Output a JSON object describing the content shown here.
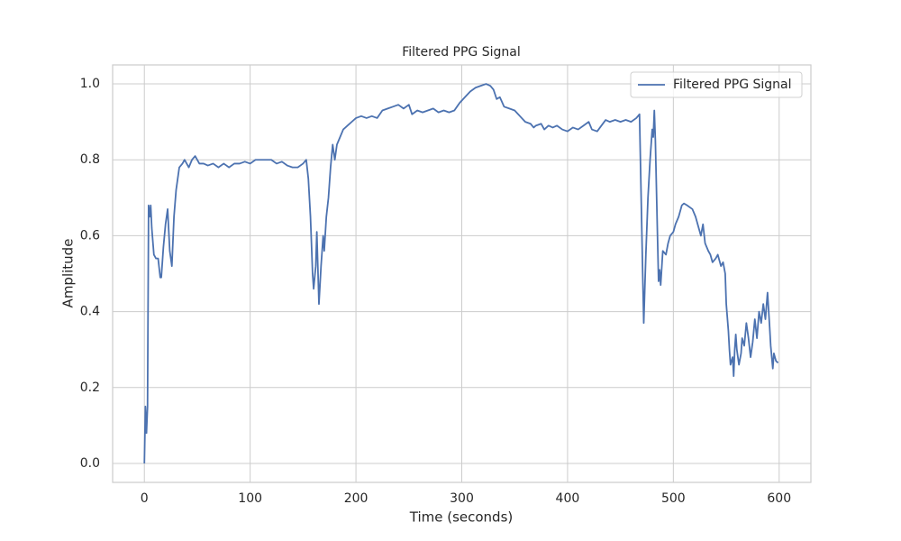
{
  "chart_data": {
    "type": "line",
    "title": "Filtered PPG Signal",
    "xlabel": "Time (seconds)",
    "ylabel": "Amplitude",
    "x": [
      0,
      1,
      2,
      3,
      4,
      5,
      6,
      7,
      9,
      11,
      13,
      15,
      16,
      18,
      20,
      22,
      24,
      26,
      28,
      30,
      33,
      36,
      38,
      40,
      42,
      45,
      48,
      52,
      56,
      60,
      65,
      70,
      75,
      80,
      85,
      90,
      95,
      100,
      105,
      110,
      115,
      120,
      125,
      130,
      135,
      140,
      145,
      150,
      153,
      155,
      157,
      159,
      160,
      162,
      163,
      165,
      167,
      169,
      170,
      172,
      174,
      176,
      178,
      180,
      182,
      185,
      188,
      192,
      196,
      200,
      205,
      210,
      215,
      220,
      225,
      230,
      235,
      240,
      245,
      250,
      253,
      258,
      263,
      268,
      273,
      278,
      283,
      288,
      293,
      298,
      303,
      308,
      313,
      318,
      323,
      327,
      330,
      333,
      336,
      340,
      345,
      350,
      355,
      360,
      365,
      368,
      370,
      375,
      378,
      382,
      386,
      390,
      395,
      400,
      405,
      410,
      415,
      420,
      423,
      428,
      432,
      436,
      440,
      445,
      450,
      455,
      460,
      465,
      468,
      469,
      471,
      472,
      474,
      476,
      478,
      480,
      481,
      482,
      483,
      485,
      486,
      487,
      488,
      490,
      493,
      495,
      497,
      500,
      502,
      505,
      508,
      510,
      513,
      518,
      521,
      524,
      526,
      528,
      530,
      533,
      535,
      537,
      540,
      542,
      545,
      547,
      549,
      550,
      552,
      553,
      554,
      556,
      557,
      558,
      559,
      560,
      562,
      564,
      565,
      567,
      569,
      571,
      573,
      575,
      577,
      579,
      581,
      583,
      585,
      587,
      589,
      591,
      592,
      594,
      595,
      597,
      599
    ],
    "series": [
      {
        "name": "Filtered PPG Signal",
        "color": "#4c72b0",
        "values": [
          0.0,
          0.15,
          0.08,
          0.15,
          0.68,
          0.65,
          0.68,
          0.62,
          0.55,
          0.54,
          0.54,
          0.49,
          0.49,
          0.57,
          0.63,
          0.67,
          0.56,
          0.52,
          0.65,
          0.72,
          0.78,
          0.79,
          0.8,
          0.79,
          0.78,
          0.8,
          0.81,
          0.79,
          0.79,
          0.785,
          0.79,
          0.78,
          0.79,
          0.78,
          0.79,
          0.79,
          0.795,
          0.79,
          0.8,
          0.8,
          0.8,
          0.8,
          0.79,
          0.795,
          0.785,
          0.78,
          0.78,
          0.79,
          0.8,
          0.75,
          0.65,
          0.5,
          0.46,
          0.52,
          0.61,
          0.42,
          0.52,
          0.6,
          0.56,
          0.65,
          0.7,
          0.78,
          0.84,
          0.8,
          0.84,
          0.86,
          0.88,
          0.89,
          0.9,
          0.91,
          0.915,
          0.91,
          0.915,
          0.91,
          0.93,
          0.935,
          0.94,
          0.945,
          0.935,
          0.945,
          0.92,
          0.93,
          0.925,
          0.93,
          0.935,
          0.925,
          0.93,
          0.925,
          0.93,
          0.95,
          0.965,
          0.98,
          0.99,
          0.995,
          1.0,
          0.995,
          0.985,
          0.96,
          0.965,
          0.94,
          0.935,
          0.93,
          0.915,
          0.9,
          0.895,
          0.885,
          0.89,
          0.895,
          0.88,
          0.89,
          0.885,
          0.89,
          0.88,
          0.875,
          0.885,
          0.88,
          0.89,
          0.9,
          0.88,
          0.875,
          0.89,
          0.905,
          0.9,
          0.905,
          0.9,
          0.905,
          0.9,
          0.91,
          0.92,
          0.78,
          0.5,
          0.37,
          0.55,
          0.7,
          0.8,
          0.88,
          0.86,
          0.93,
          0.85,
          0.6,
          0.48,
          0.51,
          0.47,
          0.56,
          0.55,
          0.58,
          0.6,
          0.61,
          0.63,
          0.65,
          0.68,
          0.685,
          0.68,
          0.67,
          0.65,
          0.62,
          0.6,
          0.63,
          0.58,
          0.56,
          0.55,
          0.53,
          0.54,
          0.55,
          0.52,
          0.53,
          0.5,
          0.42,
          0.35,
          0.3,
          0.26,
          0.28,
          0.23,
          0.3,
          0.34,
          0.3,
          0.26,
          0.29,
          0.33,
          0.31,
          0.37,
          0.33,
          0.28,
          0.32,
          0.38,
          0.33,
          0.4,
          0.37,
          0.42,
          0.38,
          0.45,
          0.36,
          0.31,
          0.25,
          0.29,
          0.27,
          0.265
        ]
      }
    ],
    "xlim": [
      -30,
      630
    ],
    "ylim": [
      -0.05,
      1.05
    ],
    "xticks": [
      0,
      100,
      200,
      300,
      400,
      500,
      600
    ],
    "yticks": [
      {
        "value": 0,
        "label": "0.0"
      },
      {
        "value": 0.2,
        "label": "0.2"
      },
      {
        "value": 0.4,
        "label": "0.4"
      },
      {
        "value": 0.6,
        "label": "0.6"
      },
      {
        "value": 0.8,
        "label": "0.8"
      },
      {
        "value": 1,
        "label": "1.0"
      }
    ],
    "grid": true,
    "legend": "upper right"
  }
}
